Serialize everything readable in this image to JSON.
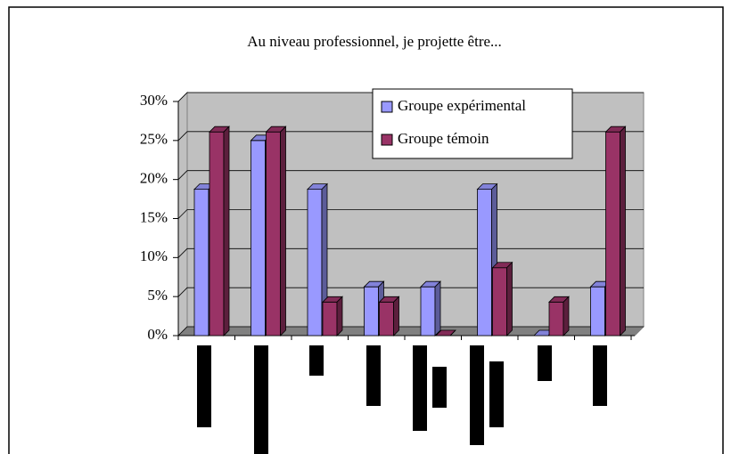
{
  "chart_data": {
    "type": "bar",
    "title": "Au niveau professionnel, je projette être...",
    "categories": [
      null,
      null,
      null,
      null,
      null,
      null,
      null,
      null
    ],
    "series": [
      {
        "name": "Groupe expérimental",
        "color": "#9999ff",
        "values": [
          18.75,
          25,
          18.75,
          6.25,
          6.25,
          18.75,
          0,
          6.25
        ]
      },
      {
        "name": "Groupe témoin",
        "color": "#993366",
        "values": [
          26.1,
          26.1,
          4.3,
          4.3,
          0,
          8.7,
          4.3,
          26.1
        ]
      }
    ],
    "ylim": [
      0,
      30
    ],
    "yticks": [
      {
        "value": 0,
        "label": "0%"
      },
      {
        "value": 5,
        "label": "5%"
      },
      {
        "value": 10,
        "label": "10%"
      },
      {
        "value": 15,
        "label": "15%"
      },
      {
        "value": 20,
        "label": "20%"
      },
      {
        "value": 25,
        "label": "25%"
      },
      {
        "value": 30,
        "label": "30%"
      }
    ],
    "grid": true,
    "legend": "top-right"
  }
}
